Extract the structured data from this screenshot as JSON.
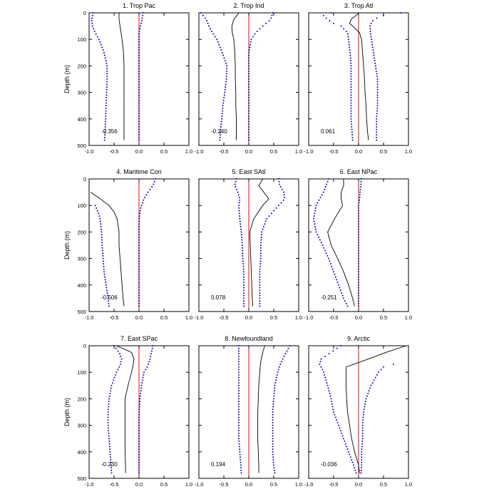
{
  "figure": {
    "ylabel": "Depth (m)"
  },
  "colors": {
    "mean_line": "#000000",
    "spread_dots": "#0000cc",
    "zero_line": "#ff0000"
  },
  "chart_data": [
    {
      "type": "line",
      "title": "1. Trop Pac",
      "annotation": "-0.356",
      "xlim": [
        -1.0,
        1.0
      ],
      "ylim": [
        500,
        0
      ],
      "xticks": [
        "-1.0",
        "-0.5",
        "0.0",
        "0.5",
        "1.0"
      ],
      "yticks": [
        "0",
        "100",
        "200",
        "300",
        "400",
        "500"
      ],
      "depth": [
        0,
        25,
        50,
        75,
        100,
        150,
        200,
        250,
        300,
        350,
        400,
        450,
        480
      ],
      "series": [
        {
          "values": [
            -0.4,
            -0.4,
            -0.38,
            -0.36,
            -0.34,
            -0.31,
            -0.3,
            -0.3,
            -0.3,
            -0.3,
            -0.3,
            -0.3,
            -0.3
          ]
        },
        {
          "values": [
            -0.92,
            -0.95,
            -0.93,
            -0.88,
            -0.8,
            -0.7,
            -0.64,
            -0.64,
            -0.65,
            -0.66,
            -0.67,
            -0.68,
            -0.69
          ]
        },
        {
          "values": [
            0.08,
            0.06,
            0.03,
            0.0,
            0.0,
            0.0,
            0.0,
            0.0,
            0.0,
            0.0,
            0.0,
            0.0,
            0.0
          ]
        }
      ]
    },
    {
      "type": "line",
      "title": "2. Trop Ind",
      "annotation": "-0.240",
      "xlim": [
        -1.0,
        1.0
      ],
      "ylim": [
        500,
        0
      ],
      "xticks": [
        "-1.0",
        "-0.5",
        "0.0",
        "0.5",
        "1.0"
      ],
      "yticks": [
        "0",
        "100",
        "200",
        "300",
        "400",
        "500"
      ],
      "depth": [
        0,
        25,
        50,
        75,
        100,
        150,
        200,
        250,
        300,
        350,
        400,
        450,
        480
      ],
      "series": [
        {
          "values": [
            -0.2,
            -0.3,
            -0.34,
            -0.33,
            -0.3,
            -0.28,
            -0.27,
            -0.27,
            -0.26,
            -0.26,
            -0.25,
            -0.25,
            -0.25
          ]
        },
        {
          "values": [
            -0.96,
            -0.85,
            -0.8,
            -0.73,
            -0.64,
            -0.53,
            -0.44,
            -0.45,
            -0.48,
            -0.52,
            -0.54,
            -0.57,
            -0.58
          ]
        },
        {
          "values": [
            0.48,
            0.44,
            0.28,
            0.14,
            0.05,
            0.0,
            0.0,
            0.0,
            0.0,
            0.0,
            0.0,
            0.0,
            0.0
          ]
        }
      ]
    },
    {
      "type": "line",
      "title": "3. Trop Atl",
      "annotation": "0.061",
      "xlim": [
        -1.0,
        1.0
      ],
      "ylim": [
        500,
        0
      ],
      "xticks": [
        "-1.0",
        "-0.5",
        "0.0",
        "0.5",
        "1.0"
      ],
      "yticks": [
        "0",
        "100",
        "200",
        "300",
        "400",
        "500"
      ],
      "depth": [
        0,
        10,
        25,
        40,
        50,
        75,
        100,
        150,
        200,
        250,
        300,
        350,
        400,
        450,
        480
      ],
      "series": [
        {
          "values": [
            0.0,
            -0.05,
            -0.15,
            -0.18,
            -0.12,
            0.02,
            0.06,
            0.08,
            0.1,
            0.12,
            0.13,
            0.15,
            0.16,
            0.18,
            0.2
          ]
        },
        {
          "values": [
            -0.55,
            -0.7,
            -0.62,
            -0.5,
            -0.35,
            -0.22,
            -0.2,
            -0.17,
            -0.15,
            -0.15,
            -0.15,
            -0.15,
            -0.15,
            -0.13,
            -0.12
          ]
        },
        {
          "values": [
            0.85,
            0.5,
            0.3,
            0.25,
            0.23,
            0.24,
            0.26,
            0.3,
            0.34,
            0.38,
            0.38,
            0.38,
            0.36,
            0.36,
            0.36
          ]
        }
      ]
    },
    {
      "type": "line",
      "title": "4. Maritime Con",
      "annotation": "-0.506",
      "xlim": [
        -1.0,
        1.0
      ],
      "ylim": [
        500,
        0
      ],
      "xticks": [
        "-1.0",
        "-0.5",
        "0.0",
        "0.5",
        "1.0"
      ],
      "yticks": [
        "0",
        "100",
        "200",
        "300",
        "400",
        "500"
      ],
      "depth": [
        0,
        25,
        50,
        75,
        100,
        125,
        150,
        200,
        250,
        300,
        350,
        400,
        450,
        480
      ],
      "series": [
        {
          "values": [
            null,
            null,
            -0.97,
            -0.78,
            -0.6,
            -0.5,
            -0.44,
            -0.4,
            -0.4,
            -0.38,
            -0.36,
            -0.34,
            -0.32,
            -0.3
          ]
        },
        {
          "values": [
            null,
            null,
            null,
            null,
            -0.88,
            -0.82,
            -0.78,
            -0.75,
            -0.74,
            -0.72,
            -0.7,
            -0.66,
            -0.62,
            -0.6
          ]
        },
        {
          "values": [
            0.33,
            0.28,
            0.18,
            0.1,
            0.05,
            0.02,
            0.0,
            0.0,
            0.0,
            0.0,
            0.0,
            0.0,
            0.0,
            0.0
          ]
        }
      ]
    },
    {
      "type": "line",
      "title": "5. East SAtl",
      "annotation": "0.078",
      "xlim": [
        -1.0,
        1.0
      ],
      "ylim": [
        500,
        0
      ],
      "xticks": [
        "-1.0",
        "-0.5",
        "0.0",
        "0.5",
        "1.0"
      ],
      "yticks": [
        "0",
        "100",
        "200",
        "300",
        "400",
        "500"
      ],
      "depth": [
        0,
        25,
        50,
        75,
        100,
        150,
        200,
        250,
        300,
        350,
        400,
        450,
        480
      ],
      "series": [
        {
          "values": [
            0.28,
            0.2,
            0.3,
            0.4,
            0.28,
            0.1,
            0.02,
            0.03,
            0.04,
            0.05,
            0.06,
            0.07,
            0.08
          ]
        },
        {
          "values": [
            -0.25,
            -0.28,
            -0.22,
            -0.18,
            -0.2,
            -0.18,
            -0.15,
            -0.13,
            -0.12,
            -0.1,
            -0.1,
            -0.1,
            -0.1
          ]
        },
        {
          "values": [
            0.6,
            0.62,
            0.7,
            0.72,
            0.6,
            0.36,
            0.26,
            0.24,
            0.24,
            0.22,
            0.22,
            0.22,
            0.22
          ]
        }
      ]
    },
    {
      "type": "line",
      "title": "6. East NPac",
      "annotation": "-0.251",
      "xlim": [
        -1.0,
        1.0
      ],
      "ylim": [
        500,
        0
      ],
      "xticks": [
        "-1.0",
        "-0.5",
        "0.0",
        "0.5",
        "1.0"
      ],
      "yticks": [
        "0",
        "100",
        "200",
        "300",
        "400",
        "500"
      ],
      "depth": [
        0,
        25,
        50,
        75,
        100,
        150,
        200,
        250,
        300,
        350,
        400,
        450,
        480
      ],
      "series": [
        {
          "values": [
            -0.3,
            -0.3,
            -0.35,
            -0.35,
            -0.32,
            -0.48,
            -0.62,
            -0.55,
            -0.42,
            -0.3,
            -0.2,
            -0.12,
            -0.08
          ]
        },
        {
          "values": [
            -0.6,
            -0.65,
            -0.7,
            -0.78,
            -0.85,
            -0.9,
            -0.85,
            -0.72,
            -0.6,
            -0.5,
            -0.4,
            -0.3,
            -0.22
          ]
        },
        {
          "values": [
            0.05,
            0.05,
            0.03,
            0.02,
            0.0,
            0.0,
            0.0,
            0.0,
            0.0,
            0.0,
            0.0,
            0.0,
            0.0
          ]
        }
      ]
    },
    {
      "type": "line",
      "title": "7. East SPac",
      "annotation": "-0.230",
      "xlim": [
        -1.0,
        1.0
      ],
      "ylim": [
        500,
        0
      ],
      "xticks": [
        "-1.0",
        "-0.5",
        "0.0",
        "0.5",
        "1.0"
      ],
      "yticks": [
        "0",
        "100",
        "200",
        "300",
        "400",
        "500"
      ],
      "depth": [
        0,
        25,
        50,
        75,
        100,
        150,
        200,
        250,
        300,
        350,
        400,
        450,
        480
      ],
      "series": [
        {
          "values": [
            -0.45,
            -0.15,
            -0.1,
            -0.12,
            -0.15,
            -0.22,
            -0.28,
            -0.28,
            -0.28,
            -0.28,
            -0.28,
            -0.27,
            -0.27
          ]
        },
        {
          "values": [
            -0.5,
            -0.4,
            -0.35,
            -0.38,
            -0.45,
            -0.55,
            -0.6,
            -0.62,
            -0.62,
            -0.6,
            -0.58,
            -0.56,
            -0.55
          ]
        },
        {
          "values": [
            0.28,
            0.25,
            0.22,
            0.18,
            0.1,
            0.05,
            0.02,
            0.0,
            0.0,
            0.0,
            0.0,
            0.0,
            0.0
          ]
        }
      ]
    },
    {
      "type": "line",
      "title": "8. Newfoundland",
      "annotation": "0.194",
      "xlim": [
        -1.0,
        1.0
      ],
      "ylim": [
        500,
        0
      ],
      "xticks": [
        "-1.0",
        "-0.5",
        "0.0",
        "0.5",
        "1.0"
      ],
      "yticks": [
        "0",
        "100",
        "200",
        "300",
        "400",
        "500"
      ],
      "depth": [
        0,
        25,
        50,
        75,
        100,
        150,
        200,
        250,
        300,
        350,
        400,
        450,
        480
      ],
      "series": [
        {
          "values": [
            0.32,
            0.28,
            0.25,
            0.23,
            0.22,
            0.2,
            0.19,
            0.18,
            0.18,
            0.18,
            0.19,
            0.2,
            0.2
          ]
        },
        {
          "values": [
            -0.2,
            -0.2,
            -0.2,
            -0.2,
            -0.2,
            -0.2,
            -0.2,
            -0.2,
            -0.2,
            -0.2,
            -0.18,
            -0.16,
            -0.15
          ]
        },
        {
          "values": [
            0.82,
            0.75,
            0.68,
            0.62,
            0.58,
            0.52,
            0.5,
            0.48,
            0.48,
            0.48,
            0.48,
            0.5,
            0.52
          ]
        }
      ]
    },
    {
      "type": "line",
      "title": "9. Arctic",
      "annotation": "-0.036",
      "xlim": [
        -1.0,
        1.0
      ],
      "ylim": [
        500,
        0
      ],
      "xticks": [
        "-1.0",
        "-0.5",
        "0.0",
        "0.5",
        "1.0"
      ],
      "yticks": [
        "0",
        "100",
        "200",
        "300",
        "400",
        "500"
      ],
      "depth": [
        0,
        25,
        50,
        70,
        80,
        100,
        150,
        200,
        250,
        300,
        350,
        400,
        450,
        480
      ],
      "series": [
        {
          "values": [
            0.95,
            0.55,
            0.2,
            -0.1,
            -0.25,
            -0.25,
            -0.25,
            -0.24,
            -0.22,
            -0.18,
            -0.14,
            -0.08,
            0.0,
            0.02
          ]
        },
        {
          "values": [
            -0.35,
            -0.55,
            -0.75,
            -0.78,
            -0.75,
            -0.7,
            -0.62,
            -0.55,
            -0.5,
            -0.4,
            -0.3,
            -0.2,
            -0.1,
            -0.05
          ]
        },
        {
          "values": [
            null,
            null,
            null,
            0.7,
            0.5,
            0.4,
            0.25,
            0.15,
            0.1,
            0.08,
            0.08,
            0.06,
            0.06,
            0.05
          ]
        }
      ]
    }
  ]
}
